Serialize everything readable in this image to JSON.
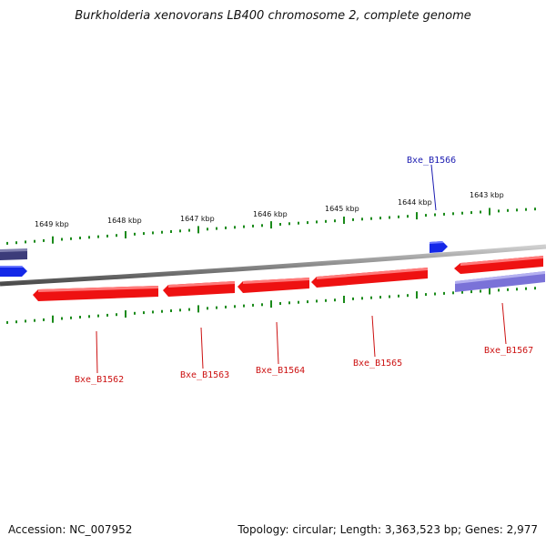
{
  "title": "Burkholderia xenovorans LB400 chromosome 2, complete genome",
  "accession_line": "Accession: NC_007952",
  "summary_line": "Topology: circular; Length: 3,363,523 bp; Genes: 2,977",
  "colors": {
    "backbone": "#8a8a8a",
    "tick": "#1a8a1a",
    "forward_gene": "#1428e8",
    "reverse_gene": "#ee1111",
    "forward_label": "#1a1ab0",
    "reverse_label": "#cc1111",
    "cds_purple": "#7a72d8",
    "cds_dark": "#3c3c7a"
  },
  "scale_labels": [
    "1649 kbp",
    "1648 kbp",
    "1647 kbp",
    "1646 kbp",
    "1645 kbp",
    "1644 kbp",
    "1643 kbp"
  ],
  "genes": [
    {
      "tag": "Bxe_B1566",
      "strand": "forward"
    },
    {
      "tag": "Bxe_B1562",
      "strand": "reverse"
    },
    {
      "tag": "Bxe_B1563",
      "strand": "reverse"
    },
    {
      "tag": "Bxe_B1564",
      "strand": "reverse"
    },
    {
      "tag": "Bxe_B1565",
      "strand": "reverse"
    },
    {
      "tag": "Bxe_B1567",
      "strand": "reverse"
    }
  ]
}
